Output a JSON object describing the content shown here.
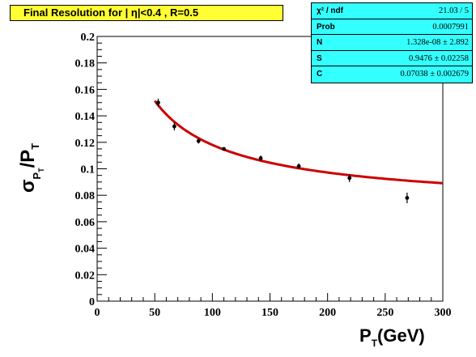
{
  "title": "Final Resolution for |   η|<0.4 , R=0.5",
  "stats": [
    {
      "label": "χ² / ndf",
      "value": "21.03 / 5"
    },
    {
      "label": "Prob",
      "value": "0.0007991"
    },
    {
      "label": "N",
      "value": "1.328e-08 ± 2.892"
    },
    {
      "label": "S",
      "value": "0.9476 ± 0.02258"
    },
    {
      "label": "C",
      "value": "0.07038 ± 0.002679"
    }
  ],
  "ylabel": {
    "main": "σ",
    "sub_small": "P",
    "sub_tiny": "T",
    "slash": "/P",
    "slash_sub": "T"
  },
  "xlabel": {
    "main": "P",
    "sub": "T",
    "unit": "(GeV)"
  },
  "colors": {
    "fit": "#cc0000",
    "title_bg": "#ffff33",
    "stats_bg": "#33ffff",
    "points": "#000000"
  },
  "chart_data": {
    "type": "scatter",
    "xlim": [
      0,
      300
    ],
    "ylim": [
      0,
      0.2
    ],
    "xticks": [
      0,
      50,
      100,
      150,
      200,
      250,
      300
    ],
    "yticks": [
      0,
      0.02,
      0.04,
      0.06,
      0.08,
      0.1,
      0.12,
      0.14,
      0.16,
      0.18,
      0.2
    ],
    "xtick_labels": [
      "0",
      "50",
      "100",
      "150",
      "200",
      "250",
      "300"
    ],
    "ytick_labels": [
      "0",
      "0.02",
      "0.04",
      "0.06",
      "0.08",
      "0.1",
      "0.12",
      "0.14",
      "0.16",
      "0.18",
      "0.2"
    ],
    "points": [
      {
        "x": 53,
        "y": 0.15,
        "err": 0.003
      },
      {
        "x": 67,
        "y": 0.132,
        "err": 0.003
      },
      {
        "x": 88,
        "y": 0.121,
        "err": 0.002
      },
      {
        "x": 110,
        "y": 0.115,
        "err": 0.001
      },
      {
        "x": 142,
        "y": 0.108,
        "err": 0.002
      },
      {
        "x": 175,
        "y": 0.102,
        "err": 0.002
      },
      {
        "x": 219,
        "y": 0.093,
        "err": 0.003
      },
      {
        "x": 269,
        "y": 0.078,
        "err": 0.004
      }
    ],
    "fit": {
      "function": "sqrt(N^2/x^2 + S^2/x + C^2)",
      "N": 1.328e-08,
      "S": 0.9476,
      "C": 0.07038,
      "x_range": [
        50,
        300
      ]
    },
    "grid": false,
    "legend": "top-right"
  }
}
